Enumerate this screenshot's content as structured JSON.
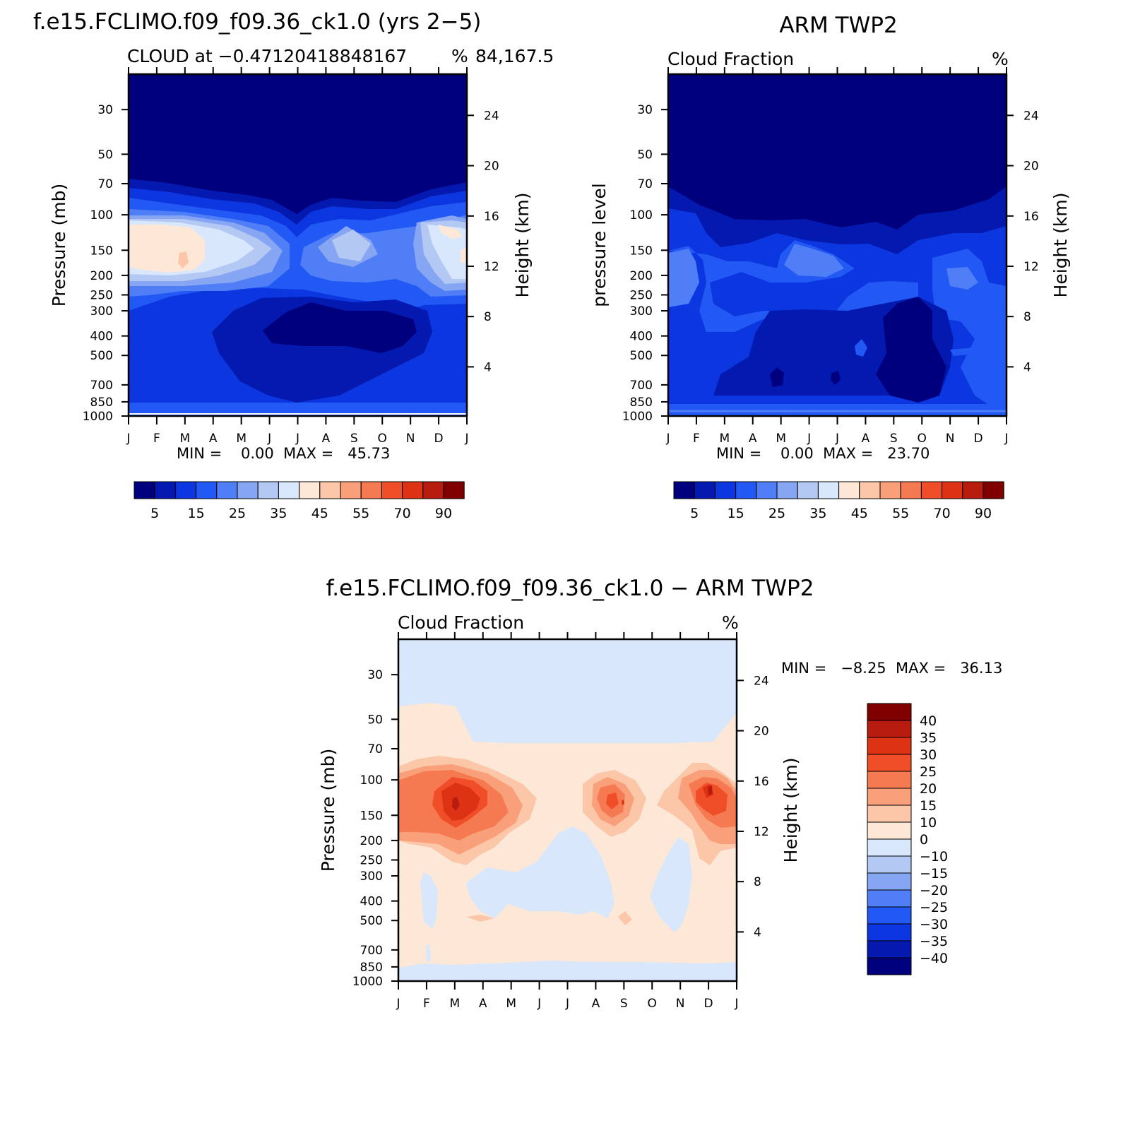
{
  "chart_data": [
    {
      "type": "heatmap",
      "title": "f.e15.FCLIMO.f09_f09.36_ck1.0 (yrs 2−5)",
      "subtitle_left": "CLOUD at −0.47120418848167",
      "subtitle_right": "84,167.5",
      "units": "%",
      "ylabel": "Pressure (mb)",
      "ylabel_right": "Height (km)",
      "x_ticks": [
        "J",
        "F",
        "M",
        "A",
        "M",
        "J",
        "J",
        "A",
        "S",
        "O",
        "N",
        "D",
        "J"
      ],
      "y_ticks": [
        "30",
        "50",
        "70",
        "100",
        "150",
        "200",
        "250",
        "300",
        "400",
        "500",
        "700",
        "850",
        "1000"
      ],
      "y_ticks_right": [
        "24",
        "20",
        "16",
        "12",
        "8",
        "4"
      ],
      "stats": "MIN =    0.00  MAX =   45.73",
      "colorbar_labels": [
        "5",
        "15",
        "25",
        "35",
        "45",
        "55",
        "70",
        "90"
      ]
    },
    {
      "type": "heatmap",
      "title": "ARM TWP2",
      "subtitle_left": "Cloud Fraction",
      "units": "%",
      "ylabel": "pressure level",
      "ylabel_right": "Height (km)",
      "x_ticks": [
        "J",
        "F",
        "M",
        "A",
        "M",
        "J",
        "J",
        "A",
        "S",
        "O",
        "N",
        "D",
        "J"
      ],
      "y_ticks": [
        "30",
        "50",
        "70",
        "100",
        "150",
        "200",
        "250",
        "300",
        "400",
        "500",
        "700",
        "850",
        "1000"
      ],
      "y_ticks_right": [
        "24",
        "20",
        "16",
        "12",
        "8",
        "4"
      ],
      "stats": "MIN =    0.00  MAX =   23.70",
      "colorbar_labels": [
        "5",
        "15",
        "25",
        "35",
        "45",
        "55",
        "70",
        "90"
      ]
    },
    {
      "type": "heatmap",
      "title": "f.e15.FCLIMO.f09_f09.36_ck1.0 − ARM TWP2",
      "subtitle_left": "Cloud Fraction",
      "units": "%",
      "ylabel": "Pressure (mb)",
      "ylabel_right": "Height (km)",
      "x_ticks": [
        "J",
        "F",
        "M",
        "A",
        "M",
        "J",
        "J",
        "A",
        "S",
        "O",
        "N",
        "D",
        "J"
      ],
      "y_ticks": [
        "30",
        "50",
        "70",
        "100",
        "150",
        "200",
        "250",
        "300",
        "400",
        "500",
        "700",
        "850",
        "1000"
      ],
      "y_ticks_right": [
        "24",
        "20",
        "16",
        "12",
        "8",
        "4"
      ],
      "stats": "MIN =   −8.25  MAX =   36.13",
      "colorbar_labels": [
        "40",
        "35",
        "30",
        "25",
        "20",
        "15",
        "10",
        "0",
        "−10",
        "−15",
        "−20",
        "−25",
        "−30",
        "−35",
        "−40"
      ]
    }
  ],
  "colors": {
    "seq": [
      "#00007f",
      "#0419b0",
      "#0b36e0",
      "#2258f4",
      "#4f7ef6",
      "#86a6f4",
      "#b4c8f4",
      "#d8e7fb",
      "#fde8d8",
      "#fcc6a8",
      "#f9a07a",
      "#f57a52",
      "#f04e28",
      "#dd3214",
      "#b81c0e",
      "#800000"
    ],
    "div": [
      "#800000",
      "#b81c0e",
      "#dd3214",
      "#f04e28",
      "#f57a52",
      "#f9a07a",
      "#fcc6a8",
      "#fde8d8",
      "#d8e7fb",
      "#b4c8f4",
      "#86a6f4",
      "#4f7ef6",
      "#2258f4",
      "#0b36e0",
      "#0419b0",
      "#00007f"
    ]
  }
}
